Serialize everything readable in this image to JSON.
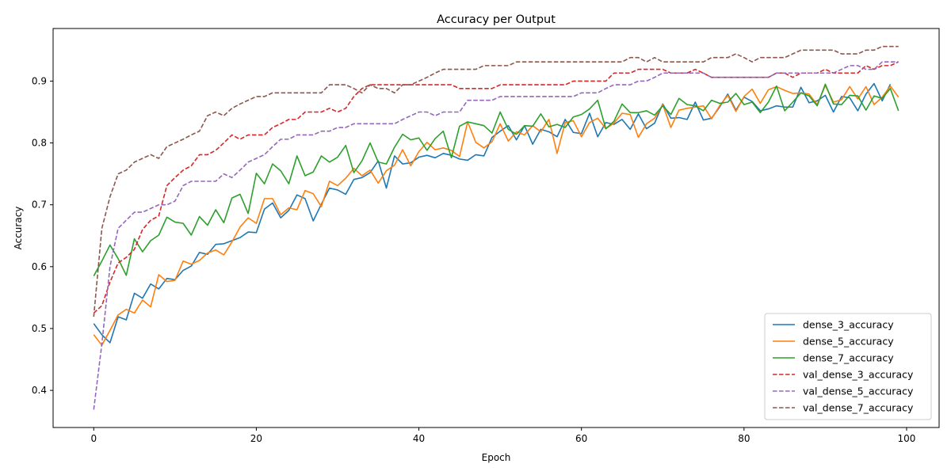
{
  "chart_data": {
    "type": "line",
    "title": "Accuracy per Output",
    "xlabel": "Epoch",
    "ylabel": "Accuracy",
    "xlim": [
      -5,
      104
    ],
    "ylim": [
      0.34,
      0.985
    ],
    "xticks": [
      0,
      20,
      40,
      60,
      80,
      100
    ],
    "yticks": [
      0.4,
      0.5,
      0.6,
      0.7,
      0.8,
      0.9
    ],
    "legend_position": "bottom-right",
    "grid": false,
    "series": [
      {
        "name": "dense_3_accuracy",
        "color": "#1f77b4",
        "style": "solid",
        "values": [
          0.508,
          0.49,
          0.477,
          0.519,
          0.514,
          0.557,
          0.549,
          0.572,
          0.564,
          0.581,
          0.579,
          0.594,
          0.601,
          0.623,
          0.62,
          0.636,
          0.637,
          0.642,
          0.647,
          0.656,
          0.655,
          0.693,
          0.703,
          0.679,
          0.691,
          0.716,
          0.71,
          0.674,
          0.701,
          0.727,
          0.724,
          0.717,
          0.741,
          0.744,
          0.752,
          0.771,
          0.727,
          0.779,
          0.766,
          0.768,
          0.777,
          0.78,
          0.776,
          0.783,
          0.78,
          0.774,
          0.772,
          0.781,
          0.779,
          0.809,
          0.819,
          0.828,
          0.805,
          0.828,
          0.798,
          0.822,
          0.818,
          0.81,
          0.838,
          0.817,
          0.815,
          0.848,
          0.81,
          0.833,
          0.83,
          0.838,
          0.822,
          0.847,
          0.823,
          0.832,
          0.863,
          0.84,
          0.841,
          0.838,
          0.866,
          0.837,
          0.84,
          0.858,
          0.879,
          0.853,
          0.874,
          0.867,
          0.852,
          0.855,
          0.86,
          0.858,
          0.858,
          0.89,
          0.865,
          0.868,
          0.877,
          0.85,
          0.875,
          0.873,
          0.852,
          0.879,
          0.896,
          0.868,
          0.895
        ]
      },
      {
        "name": "dense_5_accuracy",
        "color": "#ff7f0e",
        "style": "solid",
        "values": [
          0.49,
          0.473,
          0.497,
          0.522,
          0.531,
          0.525,
          0.546,
          0.535,
          0.587,
          0.576,
          0.578,
          0.609,
          0.604,
          0.61,
          0.622,
          0.627,
          0.619,
          0.64,
          0.664,
          0.679,
          0.67,
          0.71,
          0.71,
          0.684,
          0.695,
          0.692,
          0.723,
          0.718,
          0.697,
          0.738,
          0.731,
          0.743,
          0.759,
          0.747,
          0.756,
          0.735,
          0.755,
          0.764,
          0.789,
          0.763,
          0.786,
          0.801,
          0.789,
          0.792,
          0.788,
          0.778,
          0.834,
          0.801,
          0.792,
          0.802,
          0.831,
          0.803,
          0.818,
          0.813,
          0.828,
          0.818,
          0.838,
          0.783,
          0.833,
          0.836,
          0.81,
          0.833,
          0.84,
          0.823,
          0.832,
          0.848,
          0.846,
          0.809,
          0.831,
          0.84,
          0.862,
          0.825,
          0.853,
          0.856,
          0.858,
          0.86,
          0.839,
          0.86,
          0.877,
          0.851,
          0.875,
          0.887,
          0.864,
          0.886,
          0.891,
          0.885,
          0.88,
          0.881,
          0.879,
          0.862,
          0.893,
          0.866,
          0.87,
          0.891,
          0.871,
          0.891,
          0.862,
          0.874,
          0.892,
          0.874
        ]
      },
      {
        "name": "dense_7_accuracy",
        "color": "#2ca02c",
        "style": "solid",
        "values": [
          0.585,
          0.609,
          0.635,
          0.613,
          0.586,
          0.645,
          0.624,
          0.642,
          0.651,
          0.68,
          0.672,
          0.67,
          0.651,
          0.681,
          0.667,
          0.692,
          0.671,
          0.711,
          0.717,
          0.686,
          0.751,
          0.734,
          0.766,
          0.755,
          0.734,
          0.779,
          0.747,
          0.753,
          0.779,
          0.769,
          0.777,
          0.796,
          0.752,
          0.771,
          0.8,
          0.769,
          0.766,
          0.793,
          0.814,
          0.805,
          0.808,
          0.788,
          0.807,
          0.819,
          0.776,
          0.827,
          0.834,
          0.831,
          0.828,
          0.816,
          0.85,
          0.822,
          0.814,
          0.828,
          0.827,
          0.847,
          0.826,
          0.83,
          0.825,
          0.842,
          0.846,
          0.855,
          0.869,
          0.823,
          0.835,
          0.863,
          0.849,
          0.849,
          0.852,
          0.845,
          0.86,
          0.846,
          0.872,
          0.862,
          0.86,
          0.852,
          0.869,
          0.864,
          0.866,
          0.88,
          0.862,
          0.866,
          0.849,
          0.866,
          0.892,
          0.852,
          0.866,
          0.881,
          0.876,
          0.86,
          0.895,
          0.863,
          0.862,
          0.877,
          0.876,
          0.853,
          0.876,
          0.872,
          0.888,
          0.852
        ]
      },
      {
        "name": "val_dense_3_accuracy",
        "color": "#d62728",
        "style": "dashed",
        "values": [
          0.525,
          0.537,
          0.575,
          0.606,
          0.615,
          0.628,
          0.66,
          0.675,
          0.682,
          0.731,
          0.744,
          0.756,
          0.763,
          0.781,
          0.781,
          0.788,
          0.8,
          0.813,
          0.806,
          0.813,
          0.813,
          0.813,
          0.825,
          0.831,
          0.838,
          0.838,
          0.85,
          0.85,
          0.85,
          0.856,
          0.85,
          0.856,
          0.875,
          0.888,
          0.894,
          0.894,
          0.894,
          0.894,
          0.894,
          0.894,
          0.894,
          0.894,
          0.894,
          0.894,
          0.894,
          0.888,
          0.888,
          0.888,
          0.888,
          0.888,
          0.894,
          0.894,
          0.894,
          0.894,
          0.894,
          0.894,
          0.894,
          0.894,
          0.894,
          0.9,
          0.9,
          0.9,
          0.9,
          0.9,
          0.913,
          0.913,
          0.913,
          0.919,
          0.919,
          0.919,
          0.919,
          0.913,
          0.913,
          0.913,
          0.919,
          0.913,
          0.906,
          0.906,
          0.906,
          0.906,
          0.906,
          0.906,
          0.906,
          0.906,
          0.913,
          0.913,
          0.906,
          0.913,
          0.913,
          0.913,
          0.919,
          0.913,
          0.913,
          0.913,
          0.913,
          0.925,
          0.919,
          0.925,
          0.925,
          0.931
        ]
      },
      {
        "name": "val_dense_5_accuracy",
        "color": "#9467bd",
        "style": "dashed",
        "values": [
          0.369,
          0.475,
          0.6,
          0.662,
          0.675,
          0.688,
          0.688,
          0.694,
          0.7,
          0.7,
          0.706,
          0.731,
          0.738,
          0.738,
          0.738,
          0.738,
          0.75,
          0.744,
          0.756,
          0.769,
          0.775,
          0.781,
          0.794,
          0.806,
          0.806,
          0.813,
          0.813,
          0.813,
          0.819,
          0.819,
          0.825,
          0.825,
          0.831,
          0.831,
          0.831,
          0.831,
          0.831,
          0.831,
          0.838,
          0.844,
          0.85,
          0.85,
          0.844,
          0.85,
          0.85,
          0.85,
          0.869,
          0.869,
          0.869,
          0.869,
          0.875,
          0.875,
          0.875,
          0.875,
          0.875,
          0.875,
          0.875,
          0.875,
          0.875,
          0.875,
          0.881,
          0.881,
          0.881,
          0.888,
          0.894,
          0.894,
          0.894,
          0.9,
          0.9,
          0.906,
          0.913,
          0.913,
          0.913,
          0.913,
          0.913,
          0.913,
          0.906,
          0.906,
          0.906,
          0.906,
          0.906,
          0.906,
          0.906,
          0.906,
          0.913,
          0.913,
          0.913,
          0.913,
          0.913,
          0.913,
          0.913,
          0.913,
          0.919,
          0.925,
          0.925,
          0.919,
          0.919,
          0.931,
          0.931,
          0.931
        ]
      },
      {
        "name": "val_dense_7_accuracy",
        "color": "#8c564b",
        "style": "dashed",
        "values": [
          0.519,
          0.662,
          0.713,
          0.75,
          0.756,
          0.769,
          0.775,
          0.781,
          0.775,
          0.794,
          0.8,
          0.806,
          0.813,
          0.819,
          0.844,
          0.85,
          0.844,
          0.856,
          0.863,
          0.869,
          0.875,
          0.875,
          0.881,
          0.881,
          0.881,
          0.881,
          0.881,
          0.881,
          0.881,
          0.894,
          0.894,
          0.894,
          0.888,
          0.881,
          0.894,
          0.888,
          0.888,
          0.881,
          0.894,
          0.894,
          0.9,
          0.906,
          0.913,
          0.919,
          0.919,
          0.919,
          0.919,
          0.919,
          0.925,
          0.925,
          0.925,
          0.925,
          0.931,
          0.931,
          0.931,
          0.931,
          0.931,
          0.931,
          0.931,
          0.931,
          0.931,
          0.931,
          0.931,
          0.931,
          0.931,
          0.931,
          0.938,
          0.938,
          0.931,
          0.938,
          0.931,
          0.931,
          0.931,
          0.931,
          0.931,
          0.931,
          0.938,
          0.938,
          0.938,
          0.944,
          0.938,
          0.931,
          0.938,
          0.938,
          0.938,
          0.938,
          0.944,
          0.95,
          0.95,
          0.95,
          0.95,
          0.95,
          0.944,
          0.944,
          0.944,
          0.95,
          0.95,
          0.956,
          0.956,
          0.956
        ]
      }
    ]
  }
}
